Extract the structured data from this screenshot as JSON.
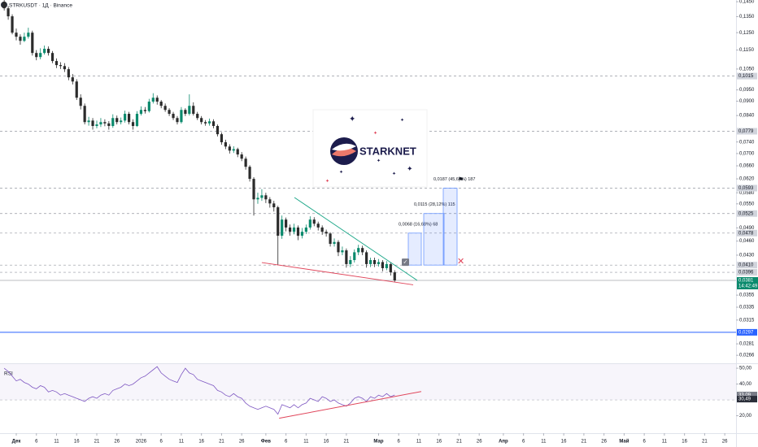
{
  "chart_data": [
    {
      "type": "candlestick",
      "title": "STRKUSDT · 1Д · Binance",
      "log_scale": true,
      "grid": false,
      "up_color": "#0b8a6d",
      "down_color": "#2b2b2b",
      "xlim": [
        -4.04,
        178.8
      ],
      "ylim": [
        0.0258,
        0.1462
      ],
      "yticks": [
        {
          "value": 0.145,
          "label": "0,1450"
        },
        {
          "value": 0.135,
          "label": "0,1350"
        },
        {
          "value": 0.125,
          "label": "0,1250"
        },
        {
          "value": 0.115,
          "label": "0,1150"
        },
        {
          "value": 0.105,
          "label": "0,1050"
        },
        {
          "value": 0.095,
          "label": "0,0950"
        },
        {
          "value": 0.09,
          "label": "0,0900"
        },
        {
          "value": 0.084,
          "label": "0,0840"
        },
        {
          "value": 0.074,
          "label": "0,0740"
        },
        {
          "value": 0.07,
          "label": "0,0700"
        },
        {
          "value": 0.066,
          "label": "0,0660"
        },
        {
          "value": 0.062,
          "label": "0,0620"
        },
        {
          "value": 0.058,
          "label": "0,0580"
        },
        {
          "value": 0.055,
          "label": "0,0550"
        },
        {
          "value": 0.049,
          "label": "0,0490"
        },
        {
          "value": 0.046,
          "label": "0,0460"
        },
        {
          "value": 0.043,
          "label": "0,0430"
        },
        {
          "value": 0.0355,
          "label": "0,0355"
        },
        {
          "value": 0.0335,
          "label": "0,0335"
        },
        {
          "value": 0.0315,
          "label": "0,0315"
        },
        {
          "value": 0.0281,
          "label": "0,0281"
        },
        {
          "value": 0.0266,
          "label": "0,0266"
        }
      ],
      "x": [
        -3,
        -2,
        -1,
        0,
        1,
        2,
        3,
        4,
        5,
        6,
        7,
        8,
        9,
        10,
        11,
        12,
        13,
        14,
        15,
        16,
        17,
        18,
        19,
        20,
        21,
        22,
        23,
        24,
        25,
        26,
        27,
        28,
        29,
        30,
        31,
        32,
        33,
        34,
        35,
        36,
        37,
        38,
        39,
        40,
        41,
        42,
        43,
        44,
        45,
        46,
        47,
        48,
        49,
        50,
        51,
        52,
        53,
        54,
        55,
        56,
        57,
        58,
        59,
        60,
        61,
        62,
        63,
        64,
        65,
        66,
        67,
        68,
        69,
        70,
        71,
        72,
        73,
        74,
        75,
        76,
        77,
        78,
        79,
        80,
        81,
        82,
        83,
        84,
        85,
        86,
        87,
        88,
        89,
        90,
        91,
        92,
        93,
        94
      ],
      "open": [
        0.145,
        0.1405,
        0.1352,
        0.125,
        0.1226,
        0.1202,
        0.1226,
        0.125,
        0.1134,
        0.1112,
        0.1134,
        0.1157,
        0.1134,
        0.1091,
        0.107,
        0.1065,
        0.1049,
        0.1009,
        0.0989,
        0.0915,
        0.088,
        0.0814,
        0.082,
        0.0799,
        0.0805,
        0.0814,
        0.0809,
        0.0799,
        0.083,
        0.0814,
        0.082,
        0.0847,
        0.0814,
        0.0799,
        0.0847,
        0.0863,
        0.0858,
        0.0898,
        0.0915,
        0.0898,
        0.088,
        0.0863,
        0.0847,
        0.083,
        0.0814,
        0.0863,
        0.0847,
        0.088,
        0.0847,
        0.083,
        0.0814,
        0.0809,
        0.0817,
        0.0799,
        0.0768,
        0.0739,
        0.0724,
        0.071,
        0.0715,
        0.0697,
        0.0683,
        0.0657,
        0.062,
        0.0562,
        0.0566,
        0.0573,
        0.0562,
        0.0551,
        0.0541,
        0.0472,
        0.051,
        0.0491,
        0.0481,
        0.0491,
        0.0472,
        0.0481,
        0.0491,
        0.051,
        0.05,
        0.0491,
        0.0481,
        0.0477,
        0.0454,
        0.0458,
        0.0436,
        0.044,
        0.0412,
        0.042,
        0.0436,
        0.0445,
        0.0436,
        0.0412,
        0.042,
        0.0412,
        0.0416,
        0.0404,
        0.0412,
        0.0396
      ],
      "high": [
        0.1462,
        0.142,
        0.1365,
        0.1275,
        0.124,
        0.125,
        0.128,
        0.1262,
        0.115,
        0.116,
        0.1175,
        0.117,
        0.1145,
        0.1105,
        0.1085,
        0.108,
        0.106,
        0.1025,
        0.1,
        0.093,
        0.089,
        0.0835,
        0.083,
        0.082,
        0.083,
        0.0825,
        0.0818,
        0.0845,
        0.084,
        0.0832,
        0.086,
        0.0855,
        0.0825,
        0.0858,
        0.0878,
        0.0875,
        0.091,
        0.0935,
        0.0925,
        0.0905,
        0.089,
        0.087,
        0.0855,
        0.0838,
        0.0875,
        0.087,
        0.093,
        0.0895,
        0.0855,
        0.0838,
        0.0822,
        0.0828,
        0.0825,
        0.0805,
        0.0775,
        0.0748,
        0.0732,
        0.0725,
        0.072,
        0.0705,
        0.069,
        0.0662,
        0.0625,
        0.058,
        0.059,
        0.058,
        0.0568,
        0.0558,
        0.0545,
        0.052,
        0.0515,
        0.0498,
        0.05,
        0.0496,
        0.049,
        0.0498,
        0.0518,
        0.0516,
        0.0505,
        0.0496,
        0.0486,
        0.048,
        0.0466,
        0.0462,
        0.0448,
        0.0444,
        0.0428,
        0.0442,
        0.0452,
        0.045,
        0.044,
        0.0425,
        0.0425,
        0.0422,
        0.042,
        0.0418,
        0.0415,
        0.04
      ],
      "low": [
        0.139,
        0.133,
        0.124,
        0.1205,
        0.118,
        0.1195,
        0.1215,
        0.112,
        0.1095,
        0.11,
        0.1125,
        0.112,
        0.108,
        0.1055,
        0.105,
        0.1035,
        0.0995,
        0.0975,
        0.0905,
        0.0865,
        0.0805,
        0.08,
        0.0785,
        0.079,
        0.0795,
        0.0798,
        0.0785,
        0.0792,
        0.0805,
        0.0805,
        0.0812,
        0.0805,
        0.0785,
        0.0795,
        0.084,
        0.0848,
        0.0852,
        0.089,
        0.0885,
        0.087,
        0.0855,
        0.0838,
        0.0822,
        0.0805,
        0.0808,
        0.0838,
        0.084,
        0.084,
        0.0822,
        0.0805,
        0.08,
        0.08,
        0.079,
        0.076,
        0.073,
        0.0715,
        0.07,
        0.0702,
        0.0688,
        0.0675,
        0.0648,
        0.0612,
        0.052,
        0.055,
        0.0558,
        0.0552,
        0.054,
        0.053,
        0.041,
        0.0465,
        0.0482,
        0.0472,
        0.0475,
        0.0462,
        0.0466,
        0.0476,
        0.0486,
        0.0494,
        0.0484,
        0.0474,
        0.047,
        0.0448,
        0.0448,
        0.0428,
        0.043,
        0.0405,
        0.0406,
        0.0415,
        0.043,
        0.043,
        0.0405,
        0.0406,
        0.0406,
        0.0407,
        0.0398,
        0.04,
        0.039,
        0.0378
      ],
      "close": [
        0.1405,
        0.1352,
        0.125,
        0.1226,
        0.1202,
        0.1226,
        0.125,
        0.1134,
        0.1112,
        0.1134,
        0.1157,
        0.1134,
        0.1091,
        0.107,
        0.1065,
        0.1049,
        0.1009,
        0.0989,
        0.0915,
        0.088,
        0.0814,
        0.082,
        0.0799,
        0.0805,
        0.0814,
        0.0809,
        0.0799,
        0.083,
        0.0814,
        0.082,
        0.0847,
        0.0814,
        0.0799,
        0.0847,
        0.0863,
        0.0858,
        0.0898,
        0.0915,
        0.0898,
        0.088,
        0.0863,
        0.0847,
        0.083,
        0.0814,
        0.0863,
        0.0847,
        0.088,
        0.0847,
        0.083,
        0.0814,
        0.0809,
        0.0817,
        0.0799,
        0.0768,
        0.0739,
        0.0724,
        0.071,
        0.0715,
        0.0697,
        0.0683,
        0.0657,
        0.062,
        0.0562,
        0.0566,
        0.0573,
        0.0562,
        0.0551,
        0.0541,
        0.0472,
        0.051,
        0.0491,
        0.0481,
        0.0491,
        0.0472,
        0.0481,
        0.0491,
        0.051,
        0.05,
        0.0491,
        0.0481,
        0.0477,
        0.0454,
        0.0458,
        0.0436,
        0.044,
        0.0412,
        0.042,
        0.0436,
        0.0445,
        0.0436,
        0.0412,
        0.042,
        0.0412,
        0.0416,
        0.0404,
        0.0412,
        0.0396,
        0.0381
      ],
      "levels": [
        {
          "value": 0.1015,
          "label": "0,1015"
        },
        {
          "value": 0.0779,
          "label": "0,0779"
        },
        {
          "value": 0.0593,
          "label": "0,0593"
        },
        {
          "value": 0.0525,
          "label": "0,0525"
        },
        {
          "value": 0.0478,
          "label": "0,0478"
        },
        {
          "value": 0.041,
          "label": "0,0410"
        },
        {
          "value": 0.0396,
          "label": "0,0396"
        }
      ],
      "current": {
        "value": 0.0381,
        "label": "0,0381",
        "countdown": "14:42:49",
        "color": "#0b8a6d"
      },
      "blue_level": {
        "value": 0.0297,
        "label": "0,0297",
        "color": "#2962ff"
      },
      "trendlines": [
        {
          "x": [
            69.1,
            99.6
          ],
          "y": [
            0.0567,
            0.0381
          ],
          "color": "#1fa88a"
        },
        {
          "x": [
            61,
            98.6
          ],
          "y": [
            0.0415,
            0.0373
          ],
          "color": "#e0455a"
        }
      ],
      "targets": {
        "base": 0.041,
        "items": [
          {
            "value": 0.0478,
            "label": "0,0068 (16,68%) 68"
          },
          {
            "value": 0.0525,
            "label": "0,0115 (28,12%) 115"
          },
          {
            "value": 0.0593,
            "label": "0,0187 (45,66%) 187"
          }
        ]
      },
      "logo_text": "STARKNET"
    },
    {
      "type": "line",
      "title": "RSI",
      "xlim": [
        -4.04,
        178.8
      ],
      "ylim": [
        9.5,
        52.6
      ],
      "band": [
        30,
        70
      ],
      "yticks": [
        {
          "value": 50,
          "label": "50,00"
        },
        {
          "value": 40,
          "label": "40,00"
        },
        {
          "value": 20,
          "label": "20,00"
        }
      ],
      "xticks": [
        {
          "value": 0,
          "label": "Дек"
        },
        {
          "value": 5,
          "label": "6"
        },
        {
          "value": 10,
          "label": "11"
        },
        {
          "value": 15,
          "label": "16"
        },
        {
          "value": 20,
          "label": "21"
        },
        {
          "value": 25,
          "label": "26"
        },
        {
          "value": 31,
          "label": "2026"
        },
        {
          "value": 36,
          "label": "6"
        },
        {
          "value": 41,
          "label": "11"
        },
        {
          "value": 46,
          "label": "16"
        },
        {
          "value": 51,
          "label": "21"
        },
        {
          "value": 56,
          "label": "26"
        },
        {
          "value": 62,
          "label": "Фев"
        },
        {
          "value": 67,
          "label": "6"
        },
        {
          "value": 72,
          "label": "11"
        },
        {
          "value": 77,
          "label": "16"
        },
        {
          "value": 82,
          "label": "21"
        },
        {
          "value": 90,
          "label": "Мар"
        },
        {
          "value": 95,
          "label": "6"
        },
        {
          "value": 100,
          "label": "11"
        },
        {
          "value": 105,
          "label": "16"
        },
        {
          "value": 110,
          "label": "21"
        },
        {
          "value": 115,
          "label": "26"
        },
        {
          "value": 121,
          "label": "Апр"
        },
        {
          "value": 126,
          "label": "6"
        },
        {
          "value": 131,
          "label": "11"
        },
        {
          "value": 136,
          "label": "16"
        },
        {
          "value": 141,
          "label": "21"
        },
        {
          "value": 146,
          "label": "26"
        },
        {
          "value": 151,
          "label": "Май"
        },
        {
          "value": 156,
          "label": "6"
        },
        {
          "value": 161,
          "label": "11"
        },
        {
          "value": 166,
          "label": "16"
        },
        {
          "value": 171,
          "label": "21"
        },
        {
          "value": 176,
          "label": "26"
        }
      ],
      "x": [
        -3,
        -2,
        -1,
        0,
        1,
        2,
        3,
        4,
        5,
        6,
        7,
        8,
        9,
        10,
        11,
        12,
        13,
        14,
        15,
        16,
        17,
        18,
        19,
        20,
        21,
        22,
        23,
        24,
        25,
        26,
        27,
        28,
        29,
        30,
        31,
        32,
        33,
        34,
        35,
        36,
        37,
        38,
        39,
        40,
        41,
        42,
        43,
        44,
        45,
        46,
        47,
        48,
        49,
        50,
        51,
        52,
        53,
        54,
        55,
        56,
        57,
        58,
        59,
        60,
        61,
        62,
        63,
        64,
        65,
        66,
        67,
        68,
        69,
        70,
        71,
        72,
        73,
        74,
        75,
        76,
        77,
        78,
        79,
        80,
        81,
        82,
        83,
        84,
        85,
        86,
        87,
        88,
        89,
        90,
        91,
        92,
        93,
        94
      ],
      "series": [
        {
          "name": "RSI",
          "color": "#7e57c2",
          "values": [
            50,
            48,
            45,
            42,
            43,
            41,
            40,
            38,
            37,
            39,
            38,
            35,
            36,
            35,
            33,
            34,
            33,
            32,
            31,
            30,
            29,
            31,
            32,
            31,
            33,
            34,
            33,
            36,
            37,
            38,
            40,
            39,
            40,
            42,
            44,
            45,
            47,
            49,
            51,
            47,
            45,
            43,
            42,
            41,
            46,
            50,
            47,
            46,
            43,
            42,
            41,
            40,
            39,
            36,
            35,
            33,
            32,
            34,
            32,
            31,
            28,
            26,
            25,
            24,
            25,
            26,
            25,
            24,
            21,
            27,
            26,
            25,
            27,
            25,
            27,
            28,
            31,
            30,
            29,
            32,
            31,
            29,
            30,
            28,
            27,
            26,
            28,
            31,
            32,
            31,
            29,
            32,
            31,
            33,
            32,
            34,
            32,
            33.09
          ]
        }
      ],
      "last_values": [
        {
          "value": 33.09,
          "label": "33,09"
        },
        {
          "value": 30.49,
          "label": "30,49"
        }
      ],
      "trendline": {
        "x": [
          65.3,
          100.6
        ],
        "y": [
          18.4,
          35.3
        ],
        "color": "#e0455a"
      }
    }
  ]
}
